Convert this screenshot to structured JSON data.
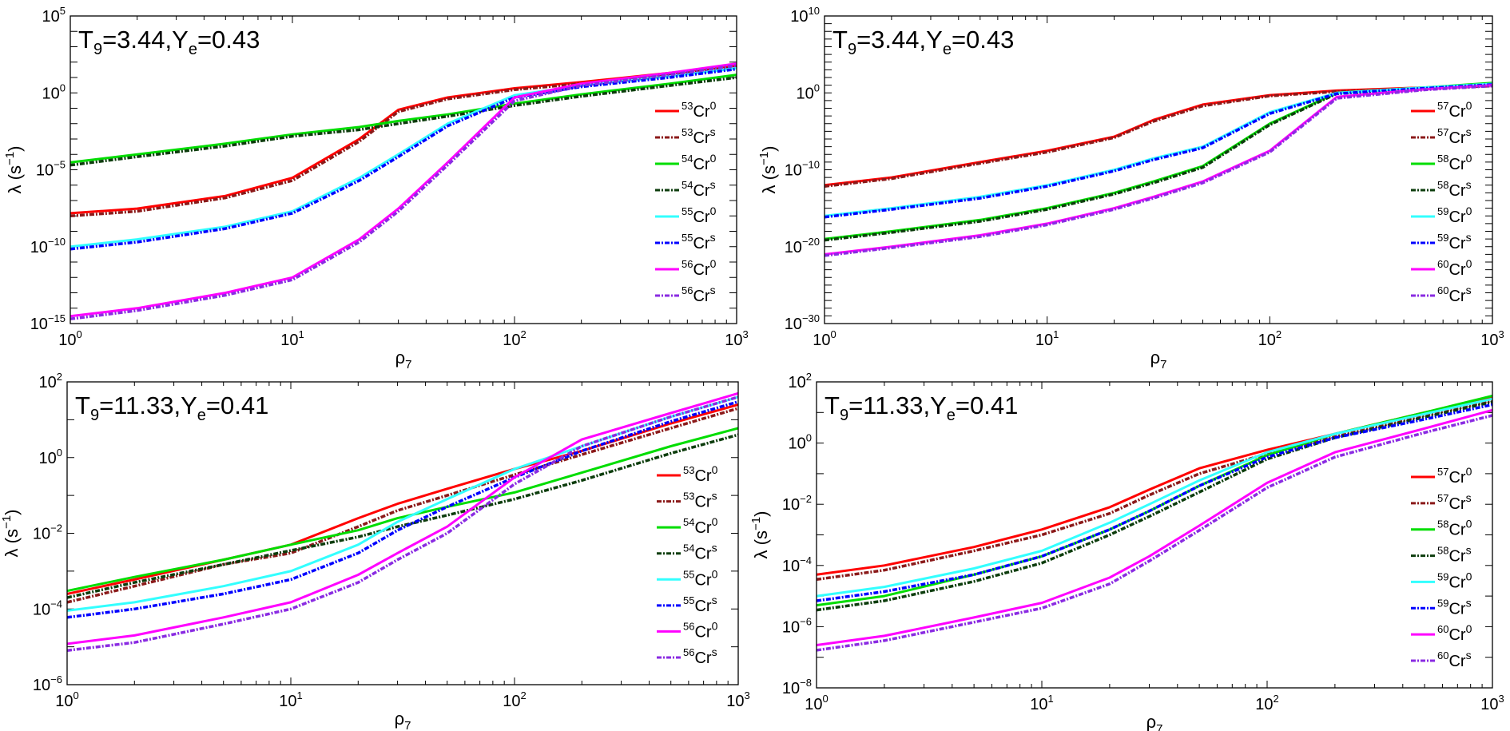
{
  "chart_data": [
    {
      "type": "line",
      "title": "T9=3.44,Ye=0.43",
      "title_parts": {
        "t_sym": "T",
        "t_sub": "9",
        "t_val": "=3.44,",
        "y_sym": "Y",
        "y_sub": "e",
        "y_val": "=0.43"
      },
      "xlabel": {
        "sym": "ρ",
        "sub": "7"
      },
      "ylabel": {
        "text": "λ (s",
        "sup": "−1",
        "close": ")"
      },
      "xscale": "log",
      "yscale": "log",
      "xlim": [
        1,
        1000
      ],
      "ylim": [
        1e-15,
        100000.0
      ],
      "x_ticks": [
        {
          "base": "10",
          "exp": "0"
        },
        {
          "base": "10",
          "exp": "1"
        },
        {
          "base": "10",
          "exp": "2"
        },
        {
          "base": "10",
          "exp": "3"
        }
      ],
      "y_ticks": [
        {
          "base": "10",
          "exp": "−15"
        },
        {
          "base": "10",
          "exp": "−10"
        },
        {
          "base": "10",
          "exp": "−5"
        },
        {
          "base": "10",
          "exp": "0"
        },
        {
          "base": "10",
          "exp": "5"
        }
      ],
      "legend_position": "right",
      "x": [
        1,
        2,
        5,
        10,
        20,
        30,
        50,
        100,
        200,
        500,
        1000
      ],
      "series": [
        {
          "mass": "53",
          "el": "Cr",
          "sup": "0",
          "color": "#ff0000",
          "style": "solid",
          "values": [
            1.5e-08,
            3e-08,
            2e-07,
            3e-06,
            0.001,
            0.08,
            0.5,
            2,
            5,
            20,
            60
          ]
        },
        {
          "mass": "53",
          "el": "Cr",
          "sup": "s",
          "color": "#8b1a1a",
          "style": "dashdot",
          "values": [
            1e-08,
            2e-08,
            1.5e-07,
            2e-06,
            0.0007,
            0.06,
            0.4,
            1.6,
            4,
            15,
            45
          ]
        },
        {
          "mass": "54",
          "el": "Cr",
          "sup": "0",
          "color": "#00dd00",
          "style": "solid",
          "values": [
            3e-05,
            0.0001,
            0.0005,
            0.002,
            0.006,
            0.015,
            0.04,
            0.2,
            0.8,
            4,
            15
          ]
        },
        {
          "mass": "54",
          "el": "Cr",
          "sup": "s",
          "color": "#0d3d0d",
          "style": "dashdot",
          "values": [
            2e-05,
            7e-05,
            0.00035,
            0.0015,
            0.004,
            0.01,
            0.03,
            0.15,
            0.6,
            3,
            10
          ]
        },
        {
          "mass": "55",
          "el": "Cr",
          "sup": "0",
          "color": "#33ffff",
          "style": "solid",
          "values": [
            1e-10,
            3e-10,
            2e-09,
            2e-08,
            3e-06,
            0.0001,
            0.01,
            0.7,
            3,
            12,
            40
          ]
        },
        {
          "mass": "55",
          "el": "Cr",
          "sup": "s",
          "color": "#0000ff",
          "style": "dashdot",
          "values": [
            7e-11,
            2e-10,
            1.5e-09,
            1.5e-08,
            2e-06,
            7e-05,
            0.007,
            0.5,
            2.5,
            10,
            35
          ]
        },
        {
          "mass": "56",
          "el": "Cr",
          "sup": "0",
          "color": "#ff00ff",
          "style": "solid",
          "values": [
            3e-15,
            1e-14,
            1e-13,
            1e-12,
            3e-10,
            3e-08,
            3e-05,
            0.5,
            4,
            20,
            80
          ]
        },
        {
          "mass": "56",
          "el": "Cr",
          "sup": "s",
          "color": "#8a2be2",
          "style": "dashdot",
          "values": [
            2e-15,
            7e-15,
            7e-14,
            7e-13,
            2e-10,
            2e-08,
            2e-05,
            0.3,
            3,
            15,
            60
          ]
        }
      ]
    },
    {
      "type": "line",
      "title": "T9=3.44,Ye=0.43",
      "title_parts": {
        "t_sym": "T",
        "t_sub": "9",
        "t_val": "=3.44,",
        "y_sym": "Y",
        "y_sub": "e",
        "y_val": "=0.43"
      },
      "xlabel": {
        "sym": "ρ",
        "sub": "7"
      },
      "ylabel": {
        "text": "λ (s",
        "sup": "−1",
        "close": ")"
      },
      "xscale": "log",
      "yscale": "log",
      "xlim": [
        1,
        1000
      ],
      "ylim": [
        1e-30,
        10000000000.0
      ],
      "x_ticks": [
        {
          "base": "10",
          "exp": "0"
        },
        {
          "base": "10",
          "exp": "1"
        },
        {
          "base": "10",
          "exp": "2"
        },
        {
          "base": "10",
          "exp": "3"
        }
      ],
      "y_ticks": [
        {
          "base": "10",
          "exp": "−30"
        },
        {
          "base": "10",
          "exp": "−20"
        },
        {
          "base": "10",
          "exp": "−10"
        },
        {
          "base": "10",
          "exp": "0"
        },
        {
          "base": "10",
          "exp": "10"
        }
      ],
      "legend_position": "right",
      "x": [
        1,
        2,
        5,
        10,
        20,
        30,
        50,
        100,
        200,
        500,
        1000
      ],
      "series": [
        {
          "mass": "57",
          "el": "Cr",
          "sup": "0",
          "color": "#ff0000",
          "style": "solid",
          "values": [
            1e-12,
            1e-11,
            1e-09,
            3e-08,
            2e-06,
            0.0003,
            0.03,
            0.5,
            2,
            5,
            10
          ]
        },
        {
          "mass": "57",
          "el": "Cr",
          "sup": "s",
          "color": "#8b1a1a",
          "style": "dashdot",
          "values": [
            7e-13,
            7e-12,
            7e-10,
            2e-08,
            1.5e-06,
            0.0002,
            0.02,
            0.4,
            1.5,
            4,
            8
          ]
        },
        {
          "mass": "58",
          "el": "Cr",
          "sup": "0",
          "color": "#00dd00",
          "style": "solid",
          "values": [
            1e-19,
            1e-18,
            3e-17,
            1e-15,
            1e-13,
            3e-12,
            3e-10,
            0.0001,
            1,
            5,
            20
          ]
        },
        {
          "mass": "58",
          "el": "Cr",
          "sup": "s",
          "color": "#0d3d0d",
          "style": "dashdot",
          "values": [
            7e-20,
            7e-19,
            2e-17,
            7e-16,
            7e-14,
            2e-12,
            2e-10,
            7e-05,
            0.8,
            4,
            15
          ]
        },
        {
          "mass": "59",
          "el": "Cr",
          "sup": "0",
          "color": "#33ffff",
          "style": "solid",
          "values": [
            1e-16,
            1e-15,
            3e-14,
            1e-12,
            1e-10,
            3e-09,
            1e-07,
            0.003,
            1,
            5,
            15
          ]
        },
        {
          "mass": "59",
          "el": "Cr",
          "sup": "s",
          "color": "#0000ff",
          "style": "dashdot",
          "values": [
            7e-17,
            7e-16,
            2e-14,
            7e-13,
            7e-11,
            2e-09,
            7e-08,
            0.002,
            0.8,
            4,
            12
          ]
        },
        {
          "mass": "60",
          "el": "Cr",
          "sup": "0",
          "color": "#ff00ff",
          "style": "solid",
          "values": [
            1e-21,
            1e-20,
            3e-19,
            1e-17,
            1e-15,
            3e-14,
            3e-12,
            3e-08,
            0.3,
            3,
            10
          ]
        },
        {
          "mass": "60",
          "el": "Cr",
          "sup": "s",
          "color": "#8a2be2",
          "style": "dashdot",
          "values": [
            7e-22,
            7e-21,
            2e-19,
            7e-18,
            7e-16,
            2e-14,
            2e-12,
            2e-08,
            0.2,
            2.5,
            8
          ]
        }
      ]
    },
    {
      "type": "line",
      "title": "T9=11.33,Ye=0.41",
      "title_parts": {
        "t_sym": "T",
        "t_sub": "9",
        "t_val": "=11.33,",
        "y_sym": "Y",
        "y_sub": "e",
        "y_val": "=0.41"
      },
      "xlabel": {
        "sym": "ρ",
        "sub": "7"
      },
      "ylabel": {
        "text": "λ (s",
        "sup": "−1",
        "close": ")"
      },
      "xscale": "log",
      "yscale": "log",
      "xlim": [
        1,
        1000
      ],
      "ylim": [
        1e-06,
        100
      ],
      "x_ticks": [
        {
          "base": "10",
          "exp": "0"
        },
        {
          "base": "10",
          "exp": "1"
        },
        {
          "base": "10",
          "exp": "2"
        },
        {
          "base": "10",
          "exp": "3"
        }
      ],
      "y_ticks": [
        {
          "base": "10",
          "exp": "−6"
        },
        {
          "base": "10",
          "exp": "−4"
        },
        {
          "base": "10",
          "exp": "−2"
        },
        {
          "base": "10",
          "exp": "0"
        },
        {
          "base": "10",
          "exp": "2"
        }
      ],
      "legend_position": "right",
      "x": [
        1,
        2,
        5,
        10,
        20,
        30,
        50,
        100,
        200,
        500,
        1000
      ],
      "series": [
        {
          "mass": "53",
          "el": "Cr",
          "sup": "0",
          "color": "#ff0000",
          "style": "solid",
          "values": [
            0.00025,
            0.0006,
            0.002,
            0.005,
            0.025,
            0.06,
            0.15,
            0.5,
            1.5,
            8,
            25
          ]
        },
        {
          "mass": "53",
          "el": "Cr",
          "sup": "s",
          "color": "#8b1a1a",
          "style": "dashdot",
          "values": [
            0.00015,
            0.0004,
            0.0015,
            0.003,
            0.015,
            0.04,
            0.1,
            0.35,
            1.2,
            6,
            20
          ]
        },
        {
          "mass": "54",
          "el": "Cr",
          "sup": "0",
          "color": "#00dd00",
          "style": "solid",
          "values": [
            0.0003,
            0.0007,
            0.002,
            0.005,
            0.012,
            0.025,
            0.05,
            0.12,
            0.4,
            2,
            6
          ]
        },
        {
          "mass": "54",
          "el": "Cr",
          "sup": "s",
          "color": "#0d3d0d",
          "style": "dashdot",
          "values": [
            0.0002,
            0.0005,
            0.0015,
            0.0035,
            0.008,
            0.015,
            0.03,
            0.08,
            0.25,
            1.3,
            4
          ]
        },
        {
          "mass": "55",
          "el": "Cr",
          "sup": "0",
          "color": "#33ffff",
          "style": "solid",
          "values": [
            9e-05,
            0.00015,
            0.0004,
            0.001,
            0.005,
            0.02,
            0.08,
            0.5,
            2,
            12,
            40
          ]
        },
        {
          "mass": "55",
          "el": "Cr",
          "sup": "s",
          "color": "#0000ff",
          "style": "dashdot",
          "values": [
            6e-05,
            0.0001,
            0.00025,
            0.0006,
            0.003,
            0.012,
            0.05,
            0.3,
            1.5,
            9,
            30
          ]
        },
        {
          "mass": "56",
          "el": "Cr",
          "sup": "0",
          "color": "#ff00ff",
          "style": "solid",
          "values": [
            1.2e-05,
            2e-05,
            6e-05,
            0.00015,
            0.0008,
            0.003,
            0.015,
            0.3,
            3,
            15,
            50
          ]
        },
        {
          "mass": "56",
          "el": "Cr",
          "sup": "s",
          "color": "#8a2be2",
          "style": "dashdot",
          "values": [
            8e-06,
            1.3e-05,
            4e-05,
            0.0001,
            0.0005,
            0.002,
            0.01,
            0.2,
            2,
            12,
            40
          ]
        }
      ]
    },
    {
      "type": "line",
      "title": "T9=11.33,Ye=0.41",
      "title_parts": {
        "t_sym": "T",
        "t_sub": "9",
        "t_val": "=11.33,",
        "y_sym": "Y",
        "y_sub": "e",
        "y_val": "=0.41"
      },
      "xlabel": {
        "sym": "ρ",
        "sub": "7"
      },
      "ylabel": {
        "text": "λ (s",
        "sup": "−1",
        "close": ")"
      },
      "xscale": "log",
      "yscale": "log",
      "xlim": [
        1,
        1000
      ],
      "ylim": [
        1e-08,
        100
      ],
      "x_ticks": [
        {
          "base": "10",
          "exp": "0"
        },
        {
          "base": "10",
          "exp": "1"
        },
        {
          "base": "10",
          "exp": "2"
        },
        {
          "base": "10",
          "exp": "3"
        }
      ],
      "y_ticks": [
        {
          "base": "10",
          "exp": "−8"
        },
        {
          "base": "10",
          "exp": "−6"
        },
        {
          "base": "10",
          "exp": "−4"
        },
        {
          "base": "10",
          "exp": "−2"
        },
        {
          "base": "10",
          "exp": "0"
        },
        {
          "base": "10",
          "exp": "2"
        }
      ],
      "legend_position": "right",
      "x": [
        1,
        2,
        5,
        10,
        20,
        30,
        50,
        100,
        200,
        500,
        1000
      ],
      "series": [
        {
          "mass": "57",
          "el": "Cr",
          "sup": "0",
          "color": "#ff0000",
          "style": "solid",
          "values": [
            5e-05,
            0.0001,
            0.0004,
            0.0015,
            0.008,
            0.03,
            0.15,
            0.6,
            2,
            10,
            30
          ]
        },
        {
          "mass": "57",
          "el": "Cr",
          "sup": "s",
          "color": "#8b1a1a",
          "style": "dashdot",
          "values": [
            3.5e-05,
            7e-05,
            0.0003,
            0.001,
            0.005,
            0.02,
            0.1,
            0.45,
            1.6,
            8,
            24
          ]
        },
        {
          "mass": "58",
          "el": "Cr",
          "sup": "0",
          "color": "#00dd00",
          "style": "solid",
          "values": [
            5e-06,
            1e-05,
            5e-05,
            0.0002,
            0.0015,
            0.006,
            0.04,
            0.4,
            2,
            10,
            35
          ]
        },
        {
          "mass": "58",
          "el": "Cr",
          "sup": "s",
          "color": "#0d3d0d",
          "style": "dashdot",
          "values": [
            3.5e-06,
            7e-06,
            3e-05,
            0.00012,
            0.001,
            0.004,
            0.025,
            0.3,
            1.5,
            7,
            22
          ]
        },
        {
          "mass": "59",
          "el": "Cr",
          "sup": "0",
          "color": "#33ffff",
          "style": "solid",
          "values": [
            1e-05,
            2e-05,
            8e-05,
            0.0003,
            0.0025,
            0.01,
            0.06,
            0.5,
            2,
            9,
            28
          ]
        },
        {
          "mass": "59",
          "el": "Cr",
          "sup": "s",
          "color": "#0000ff",
          "style": "dashdot",
          "values": [
            7e-06,
            1.4e-05,
            5e-05,
            0.0002,
            0.0015,
            0.006,
            0.04,
            0.35,
            1.5,
            6,
            18
          ]
        },
        {
          "mass": "60",
          "el": "Cr",
          "sup": "0",
          "color": "#ff00ff",
          "style": "solid",
          "values": [
            2.5e-07,
            5e-07,
            2e-06,
            6e-06,
            4e-05,
            0.0002,
            0.002,
            0.05,
            0.5,
            3,
            12
          ]
        },
        {
          "mass": "60",
          "el": "Cr",
          "sup": "s",
          "color": "#8a2be2",
          "style": "dashdot",
          "values": [
            1.7e-07,
            3.5e-07,
            1.4e-06,
            4e-06,
            2.5e-05,
            0.00014,
            0.0014,
            0.035,
            0.35,
            2.2,
            8
          ]
        }
      ]
    }
  ]
}
